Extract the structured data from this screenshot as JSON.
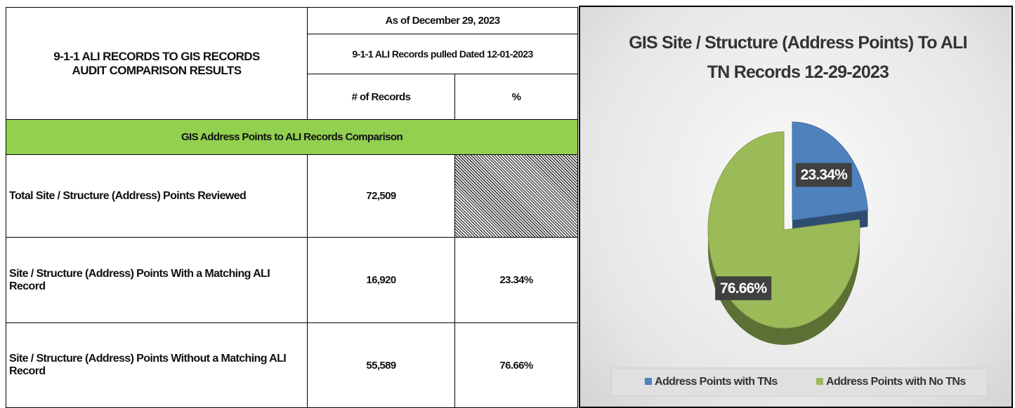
{
  "table": {
    "title_lines": [
      "9-1-1 ALI RECORDS TO GIS RECORDS",
      "AUDIT COMPARISON RESULTS"
    ],
    "as_of": "As of December 29, 2023",
    "pulled": "9-1-1 ALI Records pulled Dated 12-01-2023",
    "col_headers": [
      "# of Records",
      "%"
    ],
    "section": "GIS Address Points to ALI Records Comparison",
    "rows": [
      [
        "Total Site / Structure (Address) Points Reviewed",
        "72,509"
      ],
      [
        "Site / Structure (Address) Points With a Matching ALI Record",
        "16,920",
        "23.34%"
      ],
      [
        "Site / Structure (Address) Points  Without a Matching ALI Record",
        "55,589",
        "76.66%"
      ]
    ]
  },
  "chart_data": {
    "type": "pie",
    "title": "GIS Site / Structure (Address Points) To ALI TN Records 12-29-2023",
    "categories": [
      "Address Points with TNs",
      "Address Points with No TNs"
    ],
    "values": [
      23.34,
      76.66
    ],
    "value_labels": [
      "23.34%",
      "76.66%"
    ],
    "colors": [
      "#4f81bd",
      "#9bbb59"
    ],
    "legend": "bottom"
  }
}
